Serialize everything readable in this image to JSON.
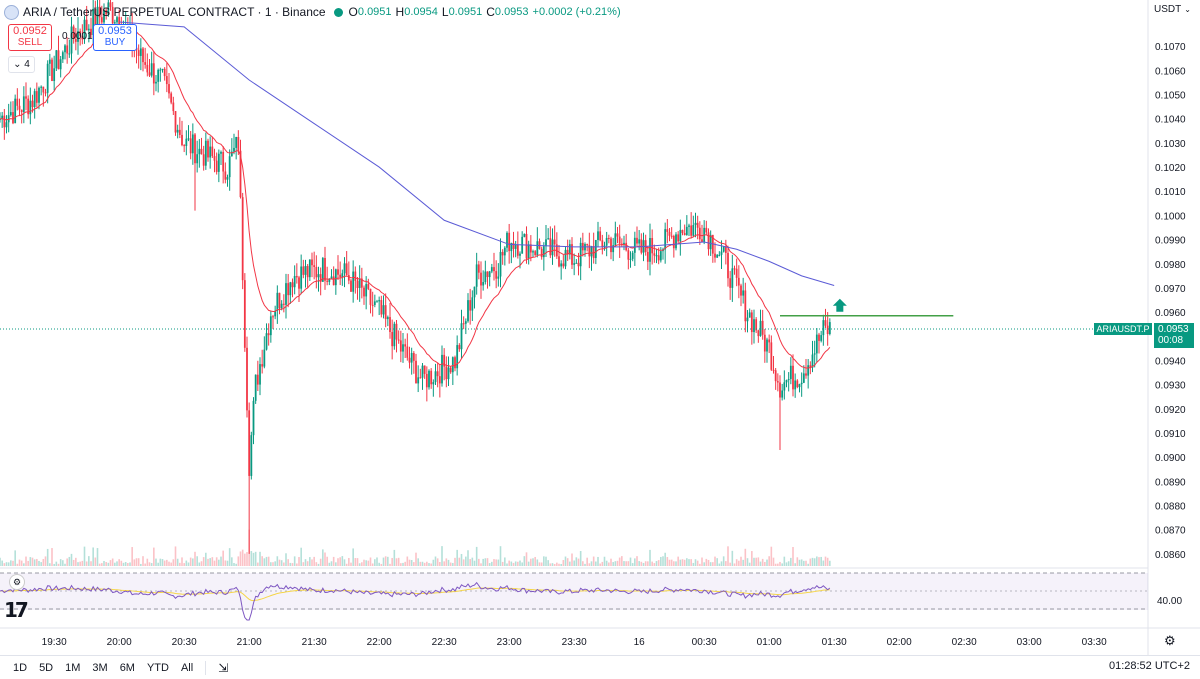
{
  "header": {
    "symbol_title": "ARIA / TetherUS PERPETUAL CONTRACT · 1 · Binance",
    "ohlc": {
      "o_label": "O",
      "o_value": "0.0951",
      "h_label": "H",
      "h_value": "0.0954",
      "l_label": "L",
      "l_value": "0.0951",
      "c_label": "C",
      "c_value": "0.0953",
      "change": "+0.0002 (+0.21%)"
    }
  },
  "trade": {
    "sell_price": "0.0952",
    "sell_label": "SELL",
    "spread": "0.0001",
    "buy_price": "0.0953",
    "buy_label": "BUY"
  },
  "indicator_toggle": "4",
  "price_axis": {
    "currency": "USDT",
    "ticks": [
      "0.1070",
      "0.1060",
      "0.1050",
      "0.1040",
      "0.1030",
      "0.1020",
      "0.1010",
      "0.1000",
      "0.0990",
      "0.0980",
      "0.0970",
      "0.0960",
      "0.0950",
      "0.0940",
      "0.0930",
      "0.0920",
      "0.0910",
      "0.0900",
      "0.0890",
      "0.0880",
      "0.0870",
      "0.0860"
    ],
    "current_price": "0.0953",
    "countdown": "00:08",
    "symbol_tag": "ARIAUSDT.P"
  },
  "rsi": {
    "level_label": "40.00"
  },
  "time_axis": {
    "ticks": [
      "19:30",
      "20:00",
      "20:30",
      "21:00",
      "21:30",
      "22:00",
      "22:30",
      "23:00",
      "23:30",
      "16",
      "00:30",
      "01:00",
      "01:30",
      "02:00",
      "02:30",
      "03:00",
      "03:30"
    ]
  },
  "range_buttons": [
    "1D",
    "5D",
    "1M",
    "3M",
    "6M",
    "YTD",
    "All"
  ],
  "clock": "01:28:52 UTC+2",
  "colors": {
    "up": "#089981",
    "down": "#f23645",
    "ema_fast": "#f23645",
    "ema_slow": "#5b5bd6",
    "rsi_line": "#7e57c2",
    "rsi_ma": "#f5d547",
    "hline": "#43a047",
    "arrow": "#089981"
  },
  "chart_data": {
    "type": "candlestick",
    "title": "ARIA / TetherUS PERPETUAL CONTRACT · 1 · Binance",
    "x_unit": "time (1-minute candles)",
    "ylim": [
      0.0855,
      0.108
    ],
    "x_range": [
      "19:05",
      "03:40"
    ],
    "keypoints_close": [
      {
        "t": "19:05",
        "p": 0.104
      },
      {
        "t": "19:20",
        "p": 0.1048
      },
      {
        "t": "19:40",
        "p": 0.1075
      },
      {
        "t": "19:55",
        "p": 0.1085
      },
      {
        "t": "20:00",
        "p": 0.1082
      },
      {
        "t": "20:10",
        "p": 0.1065
      },
      {
        "t": "20:20",
        "p": 0.1055
      },
      {
        "t": "20:30",
        "p": 0.103
      },
      {
        "t": "20:40",
        "p": 0.1025
      },
      {
        "t": "20:50",
        "p": 0.102
      },
      {
        "t": "20:55",
        "p": 0.103
      },
      {
        "t": "21:00",
        "p": 0.0898
      },
      {
        "t": "21:03",
        "p": 0.093
      },
      {
        "t": "21:10",
        "p": 0.096
      },
      {
        "t": "21:20",
        "p": 0.0975
      },
      {
        "t": "21:35",
        "p": 0.0978
      },
      {
        "t": "21:45",
        "p": 0.0975
      },
      {
        "t": "22:00",
        "p": 0.096
      },
      {
        "t": "22:10",
        "p": 0.0945
      },
      {
        "t": "22:20",
        "p": 0.0932
      },
      {
        "t": "22:35",
        "p": 0.094
      },
      {
        "t": "22:45",
        "p": 0.0975
      },
      {
        "t": "22:55",
        "p": 0.098
      },
      {
        "t": "23:00",
        "p": 0.099
      },
      {
        "t": "23:15",
        "p": 0.0986
      },
      {
        "t": "23:30",
        "p": 0.0982
      },
      {
        "t": "23:45",
        "p": 0.099
      },
      {
        "t": "00:00",
        "p": 0.0985
      },
      {
        "t": "00:10",
        "p": 0.0987
      },
      {
        "t": "00:20",
        "p": 0.0995
      },
      {
        "t": "00:30",
        "p": 0.0995
      },
      {
        "t": "00:40",
        "p": 0.098
      },
      {
        "t": "00:50",
        "p": 0.096
      },
      {
        "t": "01:00",
        "p": 0.0945
      },
      {
        "t": "01:05",
        "p": 0.093
      },
      {
        "t": "01:15",
        "p": 0.0935
      },
      {
        "t": "01:25",
        "p": 0.0952
      },
      {
        "t": "01:28",
        "p": 0.0953
      }
    ],
    "horizontal_line": {
      "price": 0.09585,
      "from": "01:05",
      "to": "02:25"
    },
    "ema_slow_keypoints": [
      {
        "t": "20:00",
        "p": 0.108
      },
      {
        "t": "20:30",
        "p": 0.1078
      },
      {
        "t": "21:00",
        "p": 0.1056
      },
      {
        "t": "21:30",
        "p": 0.1038
      },
      {
        "t": "22:00",
        "p": 0.102
      },
      {
        "t": "22:30",
        "p": 0.0998
      },
      {
        "t": "23:00",
        "p": 0.0988
      },
      {
        "t": "23:30",
        "p": 0.0987
      },
      {
        "t": "00:00",
        "p": 0.0987
      },
      {
        "t": "00:30",
        "p": 0.0989
      },
      {
        "t": "00:45",
        "p": 0.0986
      },
      {
        "t": "01:00",
        "p": 0.0981
      },
      {
        "t": "01:15",
        "p": 0.0975
      },
      {
        "t": "01:30",
        "p": 0.0971
      }
    ],
    "rsi_level": 40,
    "last_price": 0.0953
  }
}
